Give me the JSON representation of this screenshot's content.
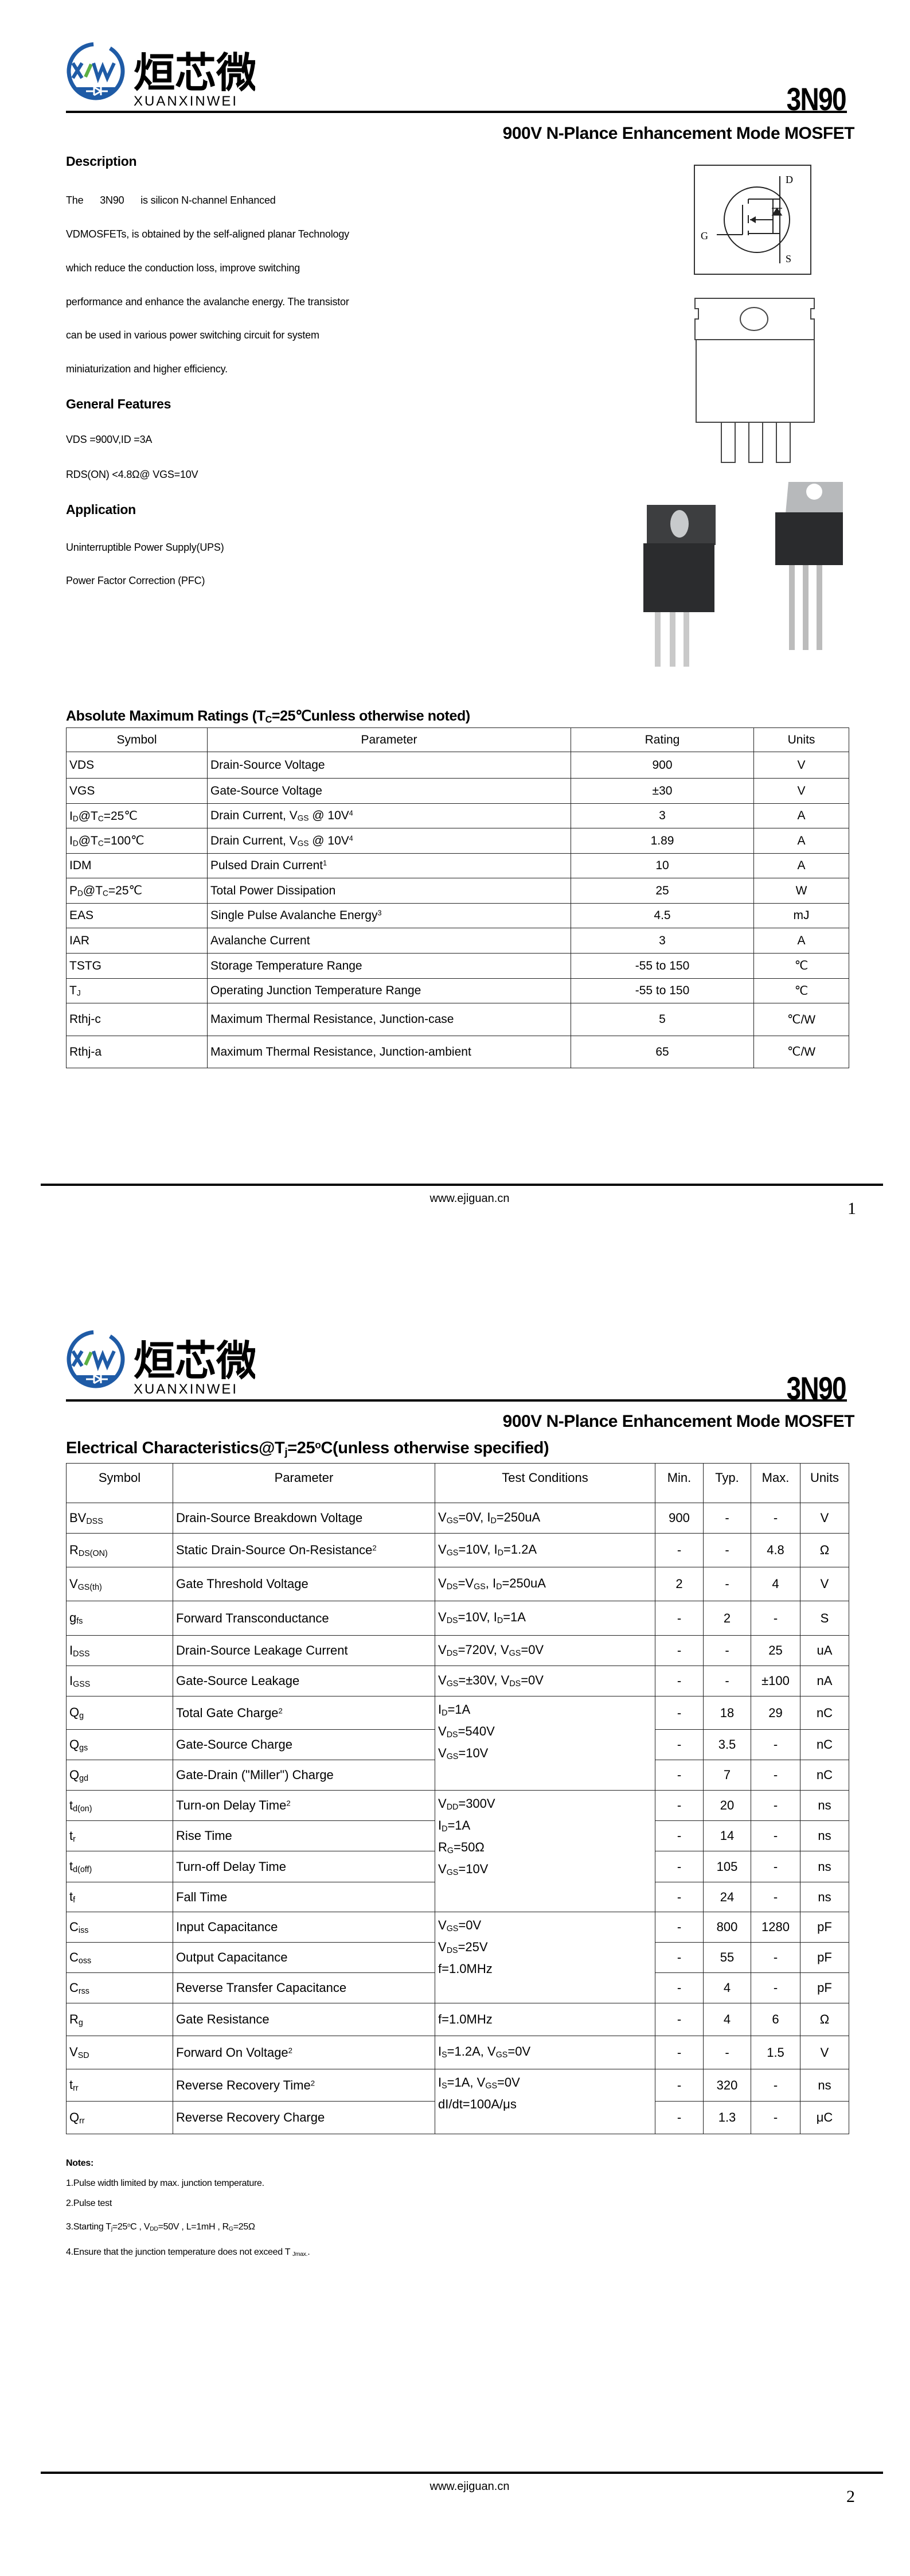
{
  "brand": {
    "logo_text": "XW",
    "name_cn": "烜芯微",
    "name_en": "XUANXINWEI",
    "primary_color": "#1f5ba6",
    "accent_color": "#5db043"
  },
  "part_number": "3N90",
  "subtitle": "900V N-Plance Enhancement Mode MOSFET",
  "page1": {
    "description_heading": "Description",
    "description_lines": [
      "The      3N90      is silicon N-channel Enhanced",
      "VDMOSFETs, is obtained by the self-aligned planar Technology",
      "which reduce the conduction loss, improve switching",
      "performance and enhance the avalanche energy. The transistor",
      "can be used in various power switching circuit for system",
      "miniaturization and higher efficiency."
    ],
    "features_heading": "General Features",
    "features": [
      "VDS =900V,ID =3A",
      "RDS(ON) <4.8Ω@ VGS=10V"
    ],
    "application_heading": "Application",
    "applications": [
      "Uninterruptible Power Supply(UPS)",
      "Power Factor Correction (PFC)"
    ],
    "symbol_labels": {
      "drain": "D",
      "gate": "G",
      "source": "S"
    },
    "abs_max": {
      "title": "Absolute Maximum Ratings (T_{C}=25℃unless otherwise noted)",
      "headers": [
        "Symbol",
        "Parameter",
        "Rating",
        "Units"
      ],
      "rows": [
        [
          "VDS",
          "Drain-Source Voltage",
          "900",
          "V"
        ],
        [
          "VGS",
          "Gate-Source Voltage",
          "±30",
          "V"
        ],
        [
          "I_{D}@T_{C}=25℃",
          "Drain Current, V_{GS} @ 10V^{4}",
          "3",
          "A"
        ],
        [
          "I_{D}@T_{C}=100℃",
          "Drain Current, V_{GS} @ 10V^{4}",
          "1.89",
          "A"
        ],
        [
          "IDM",
          "Pulsed Drain Current^{1}",
          "10",
          "A"
        ],
        [
          "P_{D}@T_{C}=25℃",
          "Total Power Dissipation",
          "25",
          "W"
        ],
        [
          "EAS",
          "Single Pulse Avalanche Energy^{3}",
          "4.5",
          "mJ"
        ],
        [
          "IAR",
          "Avalanche Current",
          "3",
          "A"
        ],
        [
          "TSTG",
          "Storage Temperature Range",
          "-55 to 150",
          "℃"
        ],
        [
          "T_{J}",
          "Operating Junction Temperature Range",
          "-55 to 150",
          "℃"
        ],
        [
          "Rthj-c",
          "Maximum Thermal Resistance, Junction-case",
          "5",
          "℃/W"
        ],
        [
          "Rthj-a",
          "Maximum Thermal Resistance, Junction-ambient",
          "65",
          "℃/W"
        ]
      ]
    },
    "footer_url": "www.ejiguan.cn",
    "page_number": "1"
  },
  "page2": {
    "elec": {
      "title": "Electrical Characteristics@T_{j}=25^{o}C(unless otherwise specified)",
      "headers": [
        "Symbol",
        "Parameter",
        "Test Conditions",
        "Min.",
        "Typ.",
        "Max.",
        "Units"
      ],
      "rows": [
        {
          "symbol": "BV_{DSS}",
          "parameter": "Drain-Source Breakdown Voltage",
          "conditions": [
            "V_{GS}=0V, I_{D}=250uA"
          ],
          "min": "900",
          "typ": "-",
          "max": "-",
          "units": "V"
        },
        {
          "symbol": "R_{DS(ON)}",
          "parameter": "Static Drain-Source On-Resistance^{2}",
          "conditions": [
            "V_{GS}=10V, I_{D}=1.2A"
          ],
          "min": "-",
          "typ": "-",
          "max": "4.8",
          "units": "Ω"
        },
        {
          "symbol": "V_{GS(th)}",
          "parameter": "Gate Threshold Voltage",
          "conditions": [
            "V_{DS}=V_{GS}, I_{D}=250uA"
          ],
          "min": "2",
          "typ": "-",
          "max": "4",
          "units": "V"
        },
        {
          "symbol": "g_{fs}",
          "parameter": "Forward Transconductance",
          "conditions": [
            "V_{DS}=10V, I_{D}=1A"
          ],
          "min": "-",
          "typ": "2",
          "max": "-",
          "units": "S"
        },
        {
          "symbol": "I_{DSS}",
          "parameter": "Drain-Source Leakage Current",
          "conditions": [
            "V_{DS}=720V, V_{GS}=0V"
          ],
          "min": "-",
          "typ": "-",
          "max": "25",
          "units": "uA"
        },
        {
          "symbol": "I_{GSS}",
          "parameter": "Gate-Source Leakage",
          "conditions": [
            "V_{GS}=±30V, V_{DS}=0V"
          ],
          "min": "-",
          "typ": "-",
          "max": "±100",
          "units": "nA"
        },
        {
          "symbol": "Q_{g}",
          "parameter": "Total Gate Charge^{2}",
          "conditions": [
            "I_{D}=1A",
            "V_{DS}=540V",
            "V_{GS}=10V"
          ],
          "min": "-",
          "typ": "18",
          "max": "29",
          "units": "nC"
        },
        {
          "symbol": "Q_{gs}",
          "parameter": "Gate-Source Charge",
          "conditions": null,
          "min": "-",
          "typ": "3.5",
          "max": "-",
          "units": "nC"
        },
        {
          "symbol": "Q_{gd}",
          "parameter": "Gate-Drain (\"Miller\") Charge",
          "conditions": null,
          "min": "-",
          "typ": "7",
          "max": "-",
          "units": "nC"
        },
        {
          "symbol": "t_{d(on)}",
          "parameter": "Turn-on Delay Time^{2}",
          "conditions": [
            "V_{DD}=300V",
            "I_{D}=1A",
            "R_{G}=50Ω",
            "V_{GS}=10V"
          ],
          "min": "-",
          "typ": "20",
          "max": "-",
          "units": "ns"
        },
        {
          "symbol": "t_{r}",
          "parameter": "Rise Time",
          "conditions": null,
          "min": "-",
          "typ": "14",
          "max": "-",
          "units": "ns"
        },
        {
          "symbol": "t_{d(off)}",
          "parameter": "Turn-off Delay Time",
          "conditions": null,
          "min": "-",
          "typ": "105",
          "max": "-",
          "units": "ns"
        },
        {
          "symbol": "t_{f}",
          "parameter": "Fall Time",
          "conditions": null,
          "min": "-",
          "typ": "24",
          "max": "-",
          "units": "ns"
        },
        {
          "symbol": "C_{iss}",
          "parameter": "Input Capacitance",
          "conditions": [
            "V_{GS}=0V",
            "V_{DS}=25V",
            "f=1.0MHz"
          ],
          "min": "-",
          "typ": "800",
          "max": "1280",
          "units": "pF"
        },
        {
          "symbol": "C_{oss}",
          "parameter": "Output Capacitance",
          "conditions": null,
          "min": "-",
          "typ": "55",
          "max": "-",
          "units": "pF"
        },
        {
          "symbol": "C_{rss}",
          "parameter": "Reverse Transfer Capacitance",
          "conditions": null,
          "min": "-",
          "typ": "4",
          "max": "-",
          "units": "pF"
        },
        {
          "symbol": "R_{g}",
          "parameter": "Gate Resistance",
          "conditions": [
            "f=1.0MHz"
          ],
          "min": "-",
          "typ": "4",
          "max": "6",
          "units": "Ω"
        },
        {
          "symbol": "V_{SD}",
          "parameter": "Forward On Voltage^{2}",
          "conditions": [
            "I_{S}=1.2A, V_{GS}=0V"
          ],
          "min": "-",
          "typ": "-",
          "max": "1.5",
          "units": "V"
        },
        {
          "symbol": "t_{rr}",
          "parameter": "Reverse Recovery Time^{2}",
          "conditions": [
            "I_{S}=1A, V_{GS}=0V",
            "dI/dt=100A/μs"
          ],
          "min": "-",
          "typ": "320",
          "max": "-",
          "units": "ns"
        },
        {
          "symbol": "Q_{rr}",
          "parameter": "Reverse Recovery Charge",
          "conditions": null,
          "min": "-",
          "typ": "1.3",
          "max": "-",
          "units": "μC"
        }
      ]
    },
    "notes_heading": "Notes:",
    "notes": [
      "1.Pulse width limited by max. junction temperature.",
      "2.Pulse test",
      "3.Starting T_{j}=25^{o}C , V_{DD}=50V , L=1mH , R_{G}=25Ω",
      "4.Ensure that the junction temperature does not exceed T _{Jmax.}."
    ],
    "footer_url": "www.ejiguan.cn",
    "page_number": "2"
  }
}
